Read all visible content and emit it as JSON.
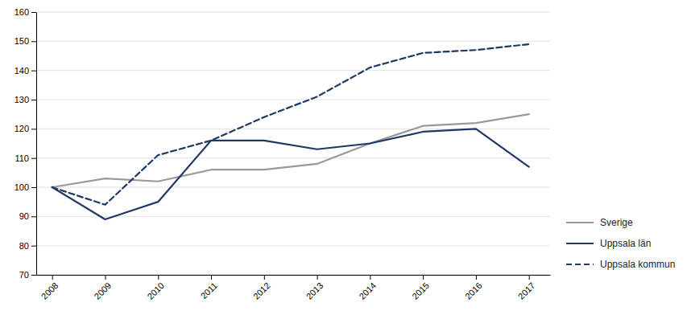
{
  "chart_data": {
    "type": "line",
    "x": [
      2008,
      2009,
      2010,
      2011,
      2012,
      2013,
      2014,
      2015,
      2016,
      2017
    ],
    "series": [
      {
        "name": "Sverige",
        "color": "#999999",
        "line_style": "solid",
        "values": [
          100,
          103,
          102,
          106,
          106,
          108,
          115,
          121,
          122,
          125
        ]
      },
      {
        "name": "Uppsala län",
        "color": "#1f3864",
        "line_style": "solid",
        "values": [
          100,
          89,
          95,
          116,
          116,
          113,
          115,
          119,
          120,
          107
        ]
      },
      {
        "name": "Uppsala kommun",
        "color": "#1f3864",
        "line_style": "dashed",
        "values": [
          100,
          94,
          111,
          116,
          124,
          131,
          141,
          146,
          147,
          149
        ]
      }
    ],
    "xlim": [
      2007.7,
      2017.4
    ],
    "xticks": [
      2008,
      2009,
      2010,
      2011,
      2012,
      2013,
      2014,
      2015,
      2016,
      2017
    ],
    "ylim": [
      70,
      160
    ],
    "yticks": [
      70,
      80,
      90,
      100,
      110,
      120,
      130,
      140,
      150,
      160
    ],
    "grid": true,
    "legend": "right"
  }
}
